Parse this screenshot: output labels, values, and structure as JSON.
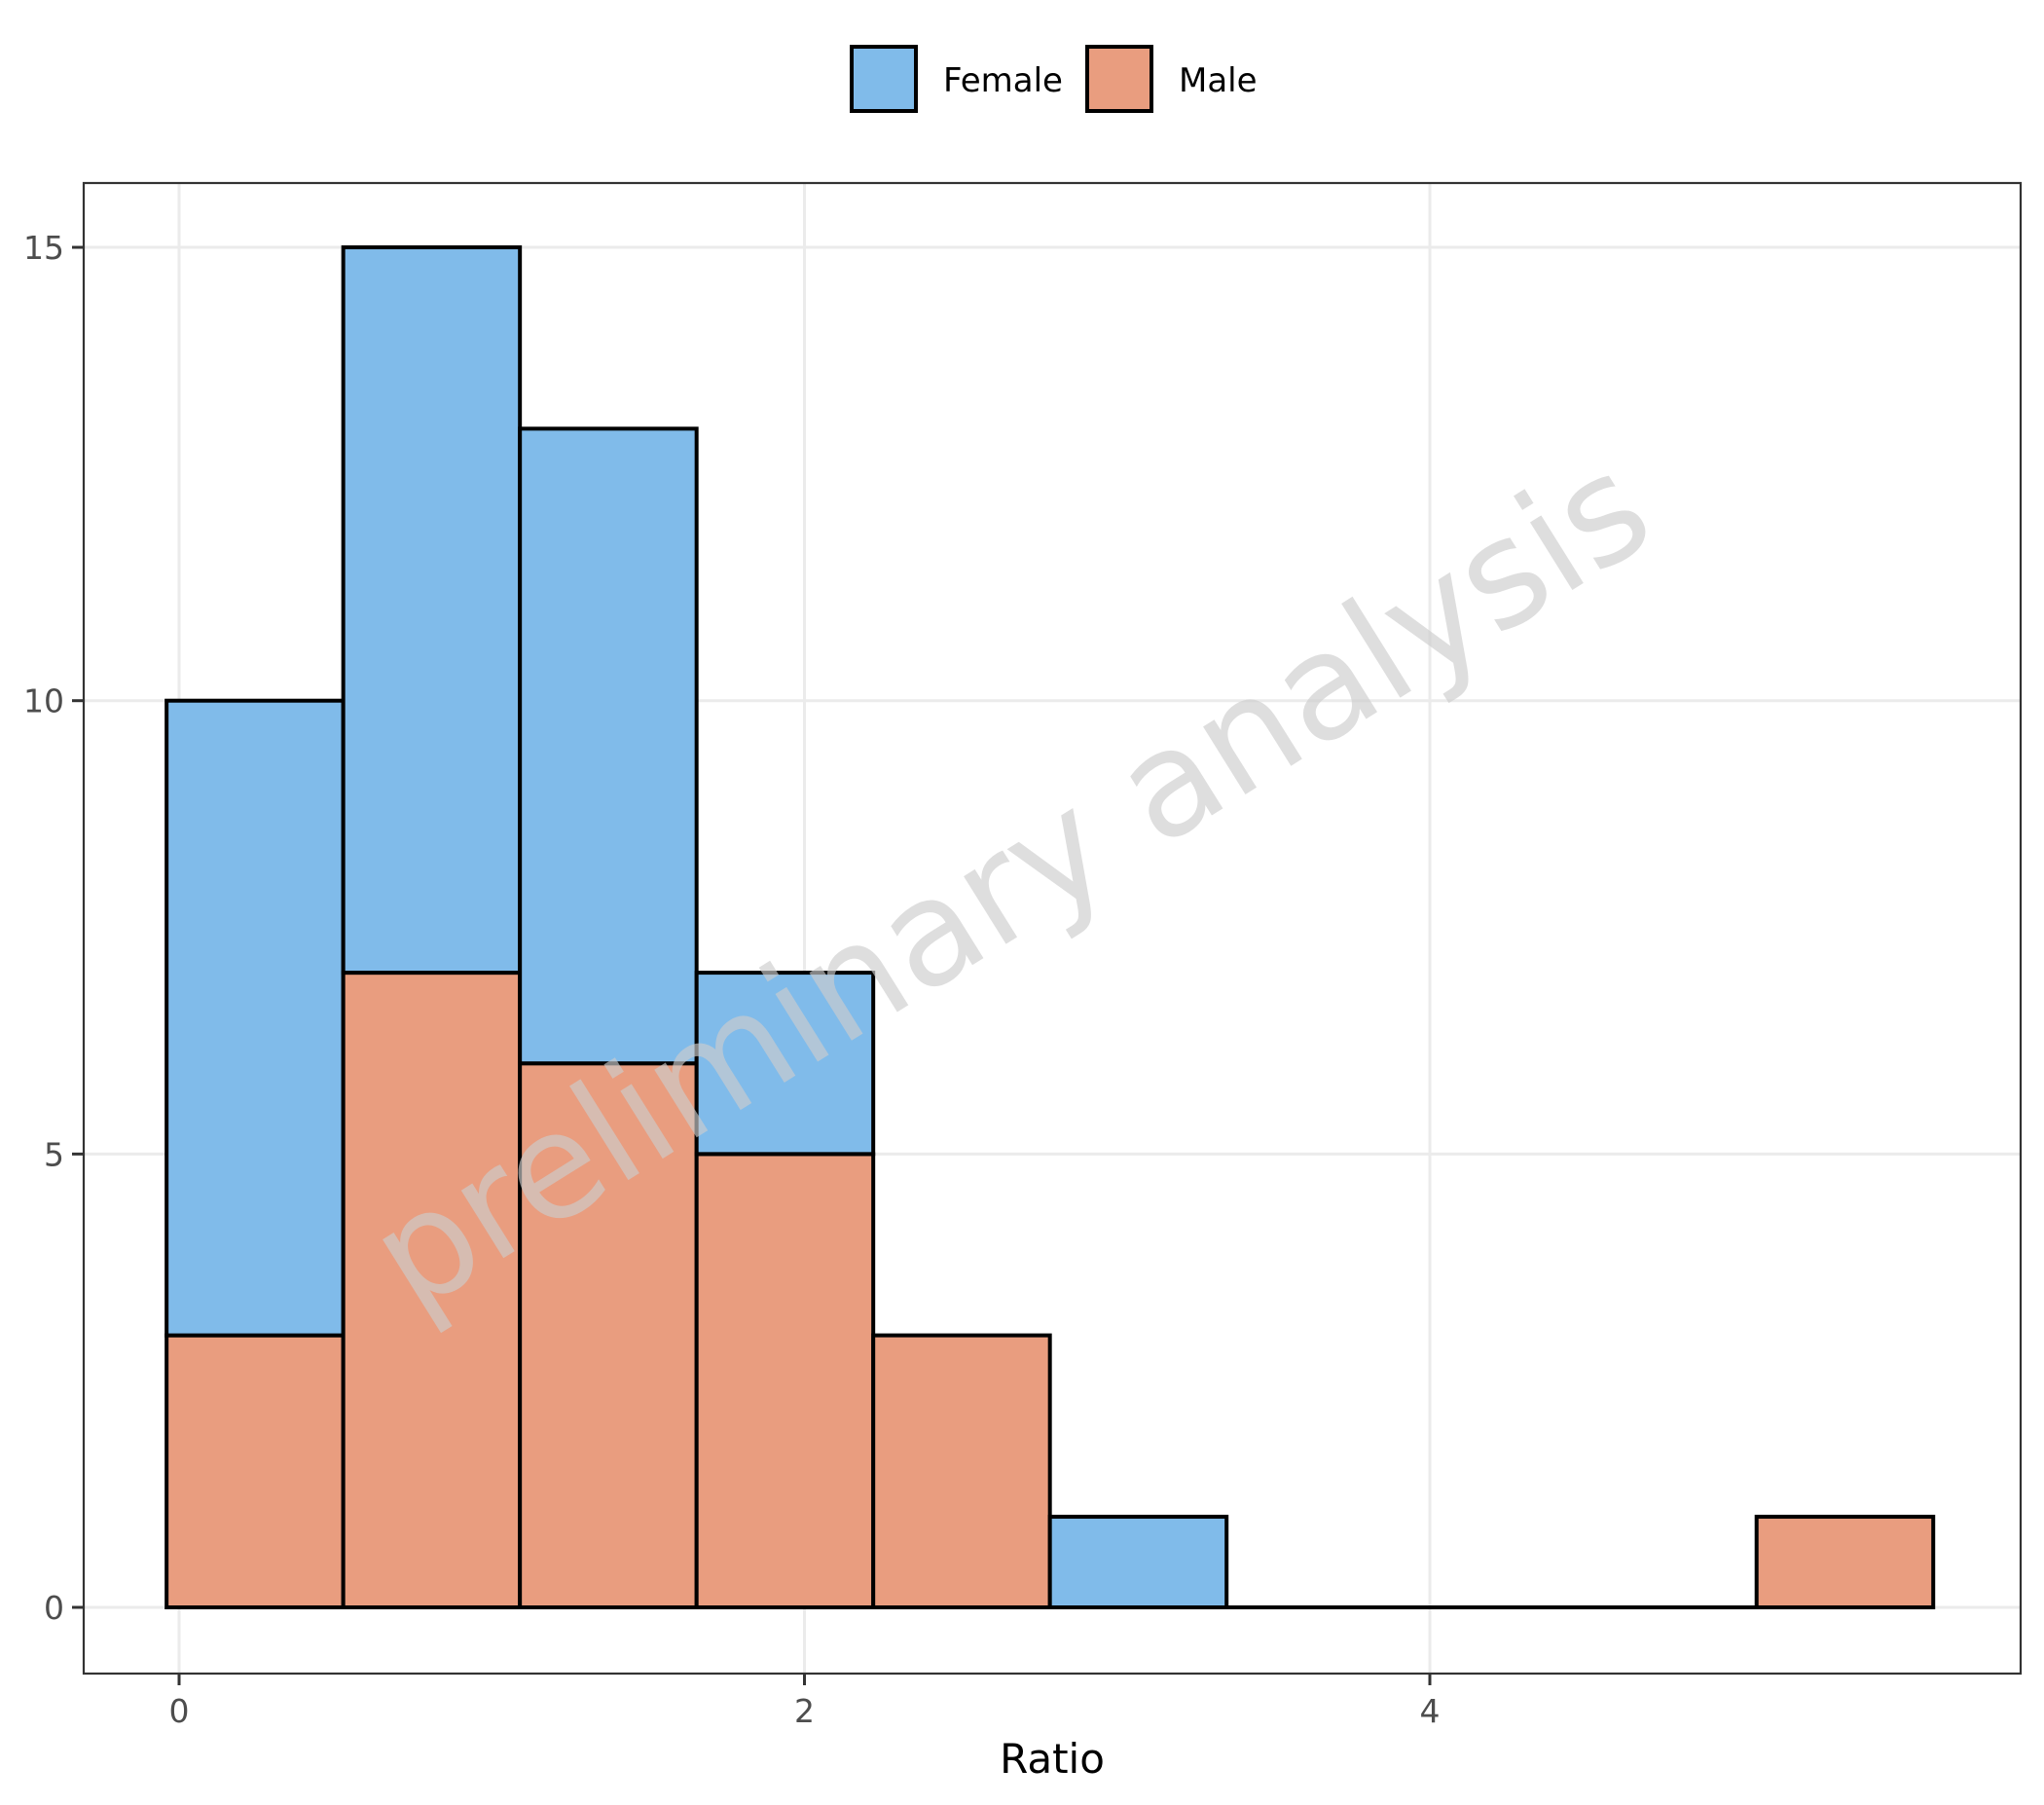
{
  "chart_data": {
    "type": "bar",
    "subtype": "stacked-histogram",
    "title": "",
    "xlabel": "Ratio",
    "ylabel": "",
    "xlim": [
      -0.2,
      5.85
    ],
    "ylim": [
      -0.75,
      15.75
    ],
    "x_ticks": [
      0,
      2,
      4
    ],
    "y_ticks": [
      0,
      5,
      10,
      15
    ],
    "grid": true,
    "legend_position": "top",
    "bin_edges": [
      -0.04,
      0.525,
      1.09,
      1.655,
      2.22,
      2.785,
      3.35,
      3.915,
      4.48,
      5.045,
      5.61
    ],
    "series": [
      {
        "name": "Female",
        "color": "#80BBEA",
        "values": [
          7,
          8,
          7,
          2,
          0,
          1,
          0,
          0,
          0,
          0
        ]
      },
      {
        "name": "Male",
        "color": "#E99D7F",
        "values": [
          3,
          7,
          6,
          5,
          3,
          0,
          0,
          0,
          0,
          1
        ]
      }
    ],
    "totals": [
      10,
      15,
      13,
      7,
      3,
      1,
      0,
      0,
      0,
      1
    ],
    "stack_order_bottom_to_top": [
      "Male",
      "Female"
    ],
    "annotations": [
      {
        "type": "watermark",
        "text": "preliminary analysis"
      }
    ]
  },
  "legend": {
    "items": [
      {
        "label": "Female",
        "color": "#80BBEA"
      },
      {
        "label": "Male",
        "color": "#E99D7F"
      }
    ]
  },
  "axes": {
    "x_title": "Ratio",
    "x_tick_labels": [
      "0",
      "2",
      "4"
    ],
    "y_tick_labels": [
      "0",
      "5",
      "10",
      "15"
    ]
  },
  "watermark": {
    "text": "preliminary analysis"
  }
}
